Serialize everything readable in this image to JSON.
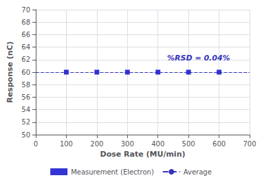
{
  "chart_data": {
    "type": "scatter",
    "x": [
      100,
      200,
      300,
      400,
      500,
      600
    ],
    "series": [
      {
        "name": "Measurement (Electron)",
        "type": "scatter",
        "marker": "square",
        "color": "#0000CC",
        "values": [
          60.0,
          60.0,
          60.0,
          60.0,
          60.0,
          60.0
        ]
      }
    ],
    "reference_lines": [
      {
        "name": "Average",
        "value": 60.0,
        "color": "#3333BB",
        "line_style": "dashed"
      }
    ],
    "annotations": [
      {
        "text": "%RSD = 0.04%",
        "x": 430,
        "y": 62.3,
        "color": "#3333BB"
      }
    ],
    "xlabel": "Dose Rate (MU/min)",
    "ylabel": "Response (nC)",
    "xlim": [
      0,
      700
    ],
    "ylim": [
      50,
      70
    ],
    "xticks": [
      0,
      100,
      200,
      300,
      400,
      500,
      600,
      700
    ],
    "yticks": [
      50,
      52,
      54,
      56,
      58,
      60,
      62,
      64,
      66,
      68,
      70
    ],
    "grid": true,
    "legend": "bottom"
  }
}
